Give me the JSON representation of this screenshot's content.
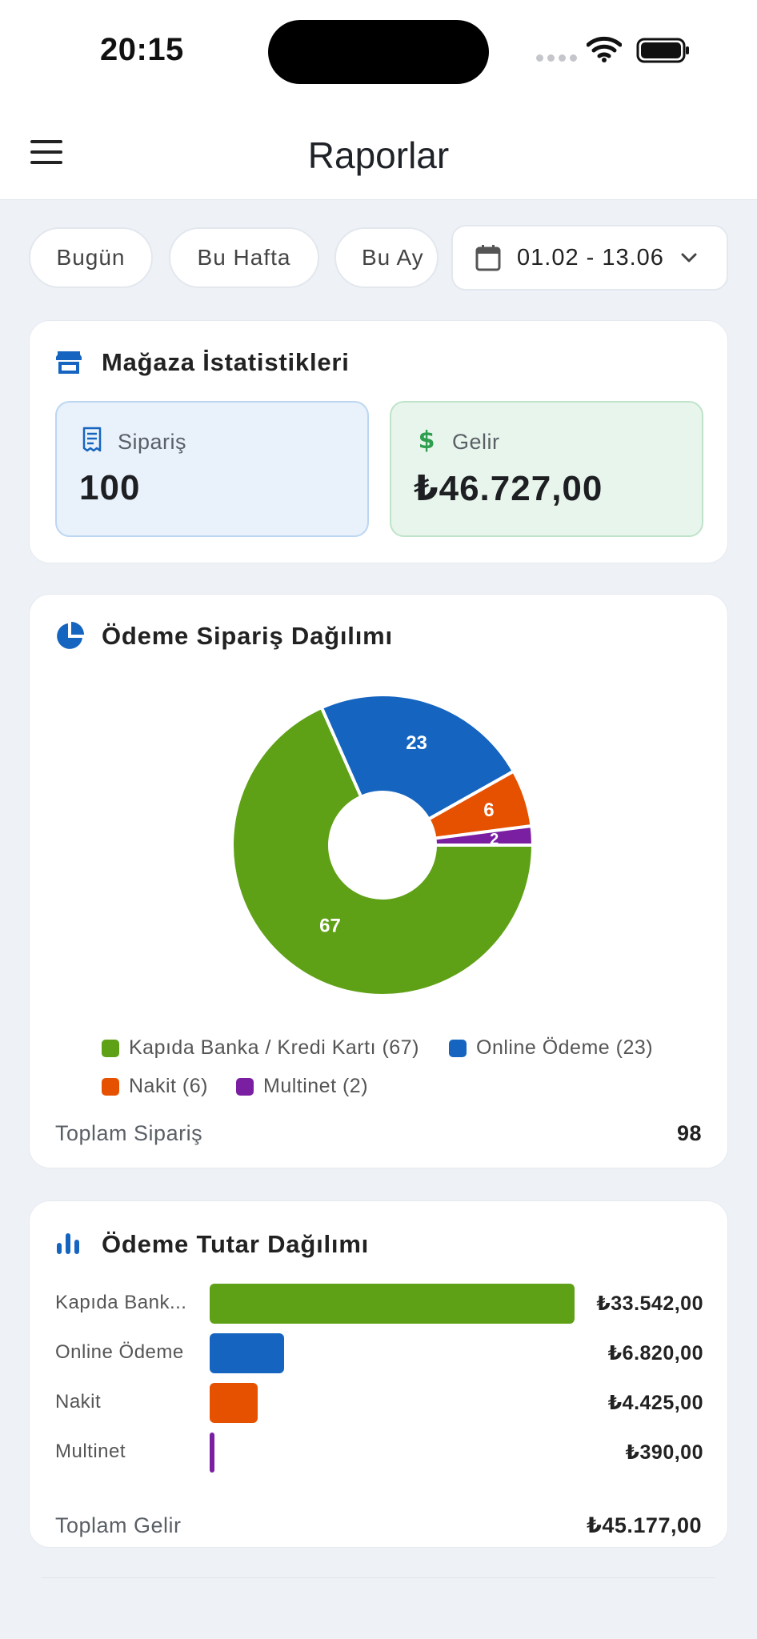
{
  "status": {
    "time": "20:15"
  },
  "header": {
    "title": "Raporlar"
  },
  "filters": {
    "today": "Bugün",
    "week": "Bu Hafta",
    "month": "Bu Ay",
    "date_range": "01.02 - 13.06"
  },
  "store_stats": {
    "title": "Mağaza İstatistikleri",
    "orders_label": "Sipariş",
    "orders_value": "100",
    "revenue_label": "Gelir",
    "revenue_value": "₺46.727,00"
  },
  "payment_orders": {
    "title": "Ödeme Sipariş Dağılımı",
    "total_label": "Toplam Sipariş",
    "total_value": "98"
  },
  "payment_amounts": {
    "title": "Ödeme Tutar Dağılımı",
    "total_label": "Toplam Gelir",
    "total_value": "₺45.177,00"
  },
  "colors": {
    "green": "#5fa116",
    "blue": "#1565c0",
    "orange": "#e65100",
    "purple": "#7b1fa2"
  },
  "chart_data": [
    {
      "type": "pie",
      "title": "Ödeme Sipariş Dağılımı",
      "categories": [
        "Kapıda Banka / Kredi Kartı",
        "Online Ödeme",
        "Nakit",
        "Multinet"
      ],
      "values": [
        67,
        23,
        6,
        2
      ],
      "slice_labels": [
        "67",
        "23",
        "6",
        "2"
      ],
      "legend": [
        "Kapıda Banka / Kredi Kartı (67)",
        "Online Ödeme (23)",
        "Nakit (6)",
        "Multinet (2)"
      ],
      "colors": [
        "#5fa116",
        "#1565c0",
        "#e65100",
        "#7b1fa2"
      ],
      "donut": true
    },
    {
      "type": "bar",
      "title": "Ödeme Tutar Dağılımı",
      "orientation": "horizontal",
      "categories": [
        "Kapıda Bank...",
        "Online Ödeme",
        "Nakit",
        "Multinet"
      ],
      "values": [
        33542,
        6820,
        4425,
        390
      ],
      "value_labels": [
        "₺33.542,00",
        "₺6.820,00",
        "₺4.425,00",
        "₺390,00"
      ],
      "colors": [
        "#5fa116",
        "#1565c0",
        "#e65100",
        "#7b1fa2"
      ]
    }
  ]
}
